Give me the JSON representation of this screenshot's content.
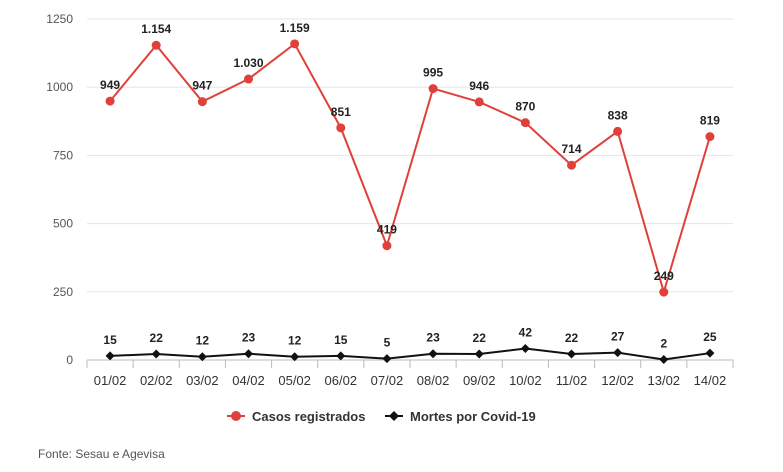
{
  "chart_data": {
    "type": "line",
    "categories": [
      "01/02",
      "02/02",
      "03/02",
      "04/02",
      "05/02",
      "06/02",
      "07/02",
      "08/02",
      "09/02",
      "10/02",
      "11/02",
      "12/02",
      "13/02",
      "14/02"
    ],
    "series": [
      {
        "name": "Casos registrados",
        "color": "#e0403a",
        "marker": "circle",
        "values": [
          949,
          1154,
          947,
          1030,
          1159,
          851,
          419,
          995,
          946,
          870,
          714,
          838,
          249,
          819
        ],
        "labels": [
          "949",
          "1.154",
          "947",
          "1.030",
          "1.159",
          "851",
          "419",
          "995",
          "946",
          "870",
          "714",
          "838",
          "249",
          "819"
        ]
      },
      {
        "name": "Mortes por Covid-19",
        "color": "#111111",
        "marker": "diamond",
        "values": [
          15,
          22,
          12,
          23,
          12,
          15,
          5,
          23,
          22,
          42,
          22,
          27,
          2,
          25
        ],
        "labels": [
          "15",
          "22",
          "12",
          "23",
          "12",
          "15",
          "5",
          "23",
          "22",
          "42",
          "22",
          "27",
          "2",
          "25"
        ]
      }
    ],
    "ylim": [
      0,
      1250
    ],
    "yticks": [
      0,
      250,
      500,
      750,
      1000,
      1250
    ],
    "grid": true,
    "legend": "bottom-center"
  },
  "source": "Fonte: Sesau e Agevisa"
}
